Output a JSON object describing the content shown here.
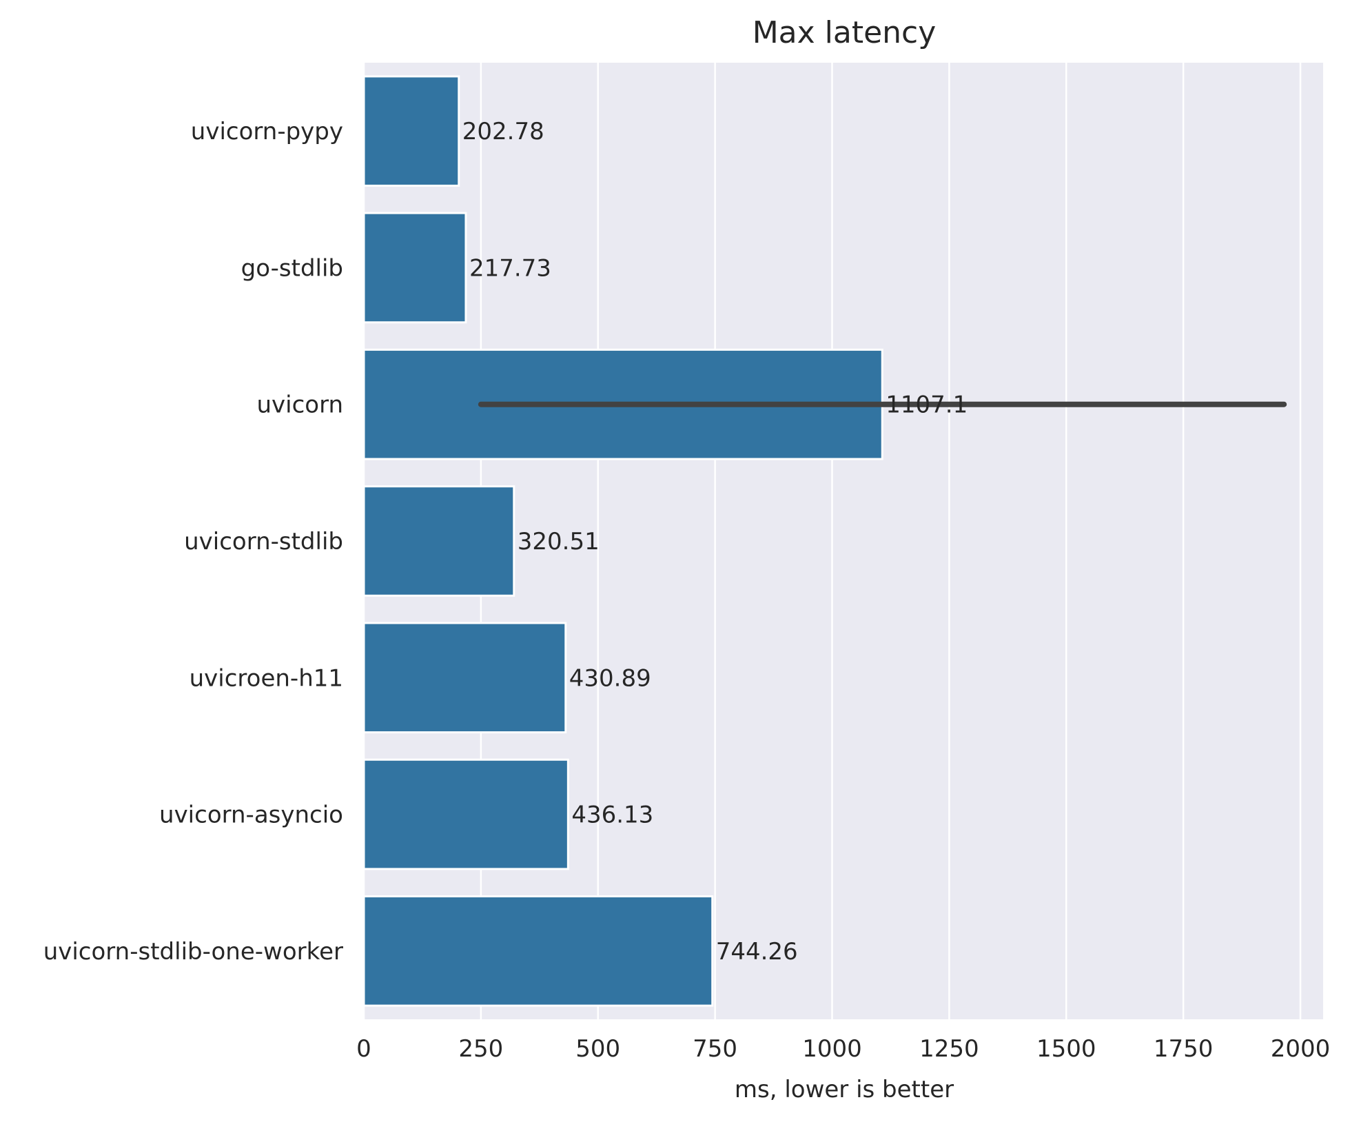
{
  "chart_data": {
    "type": "bar",
    "orientation": "horizontal",
    "title": "Max latency",
    "xlabel": "ms, lower is better",
    "ylabel": "",
    "categories": [
      "uvicorn-pypy",
      "go-stdlib",
      "uvicorn",
      "uvicorn-stdlib",
      "uvicroen-h11",
      "uvicorn-asyncio",
      "uvicorn-stdlib-one-worker"
    ],
    "values": [
      202.78,
      217.73,
      1107.1,
      320.51,
      430.89,
      436.13,
      744.26
    ],
    "value_labels": [
      "202.78",
      "217.73",
      "1107.1",
      "320.51",
      "430.89",
      "436.13",
      "744.26"
    ],
    "error_bars": [
      null,
      null,
      [
        250,
        1965
      ],
      null,
      null,
      null,
      null
    ],
    "xlim": [
      0,
      2050
    ],
    "xticks": [
      0,
      250,
      500,
      750,
      1000,
      1250,
      1500,
      1750,
      2000
    ],
    "xtick_labels": [
      "0",
      "250",
      "500",
      "750",
      "1000",
      "1250",
      "1500",
      "1750",
      "2000"
    ],
    "grid": true,
    "colors": {
      "bar": "#3274a1",
      "plot_background": "#eaeaf2",
      "grid": "#ffffff",
      "error_bar": "#424242"
    }
  }
}
